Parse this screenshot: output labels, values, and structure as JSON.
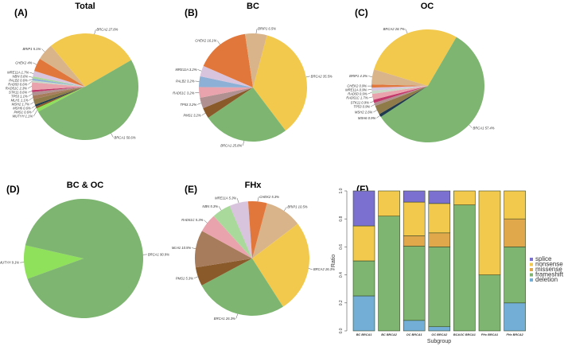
{
  "colors": {
    "BRCA2": "#f2c94c",
    "BRCA1": "#7db571",
    "BRIP1": "#d9b48a",
    "CHEK2": "#e2773c",
    "MRE11A": "#d8c4dc",
    "NBN": "#a9d99b",
    "PALB2": "#8db0d6",
    "RAD50": "#c9d9c8",
    "RAD51C": "#e9a3ac",
    "STK11": "#c2386b",
    "TP53": "#b09090",
    "MLH1": "#a77c5c",
    "MSH2": "#8f7a4a",
    "MSH6": "#1f3a4f",
    "PMS1": "#8a5a2a",
    "MUTYH": "#8fe05a",
    "splice": "#7b6fcf",
    "nonsense": "#f2c94c",
    "missense": "#e0a84a",
    "frameshift": "#7db571",
    "deletion": "#72aed6"
  },
  "chart_data": [
    {
      "panel": "(A)",
      "title": "Total",
      "type": "pie",
      "slices": [
        [
          "BRCA2",
          27.8
        ],
        [
          "BRCA1",
          50.6
        ],
        [
          "MUTYH",
          1.1
        ],
        [
          "PMS1",
          0.6
        ],
        [
          "MSH6",
          0.6
        ],
        [
          "MSH2",
          1.7
        ],
        [
          "MLH1",
          1.1
        ],
        [
          "TP53",
          1.1
        ],
        [
          "STK11",
          0.6
        ],
        [
          "RAD51C",
          2.3
        ],
        [
          "RAD50",
          0.6
        ],
        [
          "PALB2",
          0.6
        ],
        [
          "NBN",
          0.6
        ],
        [
          "MRE11A",
          1.7
        ],
        [
          "CHEK2",
          4
        ],
        [
          "BRIP1",
          5.1
        ]
      ],
      "labels": [
        "BRCA2 27.8%",
        "BRCA1 50.6%",
        "MUTYH 1.1%",
        "PMS1 0.6%",
        "MSH6 0.6%",
        "MSH2 1.7%",
        "MLH1 1.1%",
        "TP53 1.1%",
        "STK11 0.6%",
        "RAD51C 2.3%",
        "RAD50 0.6%",
        "PALB2 0.6%",
        "NBN 0.6%",
        "MRE11A 1.7%",
        "CHEK2 4%",
        "BRIP1 5.1%"
      ]
    },
    {
      "panel": "(B)",
      "title": "BC",
      "type": "pie",
      "slices": [
        [
          "BRCA2",
          35.5
        ],
        [
          "BRCA1",
          25.8
        ],
        [
          "PMS1",
          3.2
        ],
        [
          "TP53",
          3.2
        ],
        [
          "RAD51C",
          3.2
        ],
        [
          "PALB2",
          3.2
        ],
        [
          "MRE11A",
          3.2
        ],
        [
          "CHEK2",
          16.1
        ],
        [
          "BRIP1",
          6.5
        ]
      ],
      "labels": [
        "BRCA2 35.5%",
        "BRCA1 25.8%",
        "PMS1 3.2%",
        "TP53 3.2%",
        "RAD51C 3.2%",
        "PALB2 3.2%",
        "MRE11A 3.2%",
        "CHEK2 16.1%",
        "BRIP1 6.5%"
      ]
    },
    {
      "panel": "(C)",
      "title": "OC",
      "type": "pie",
      "slices": [
        [
          "BRCA2",
          28.7
        ],
        [
          "BRCA1",
          57.4
        ],
        [
          "MSH6",
          0.9
        ],
        [
          "MSH2",
          2.6
        ],
        [
          "TP53",
          0.9
        ],
        [
          "STK11",
          0.9
        ],
        [
          "RAD51C",
          1.7
        ],
        [
          "RAD50",
          0.9
        ],
        [
          "MRE11A",
          0.9
        ],
        [
          "CHEK2",
          0.9
        ],
        [
          "BRIP1",
          4.3
        ]
      ],
      "labels": [
        "BRCA2 28.7%",
        "BRCA1 57.4%",
        "MSH6 0.9%",
        "MSH2 2.6%",
        "TP53 0.9%",
        "STK11 0.9%",
        "RAD51C 1.7%",
        "RAD50 0.9%",
        "MRE11A 0.9%",
        "CHEK2 0.9%",
        "BRIP1 4.3%"
      ]
    },
    {
      "panel": "(D)",
      "title": "BC & OC",
      "type": "pie",
      "slices": [
        [
          "MUTYH",
          9.1
        ],
        [
          "BRCA1",
          90.9
        ]
      ],
      "labels": [
        "MUTYH 9.1%",
        "BRCA1 90.9%"
      ]
    },
    {
      "panel": "(E)",
      "title": "FHx",
      "type": "pie",
      "slices": [
        [
          "BRIP1",
          10.5
        ],
        [
          "BRCA2",
          26.3
        ],
        [
          "BRCA1",
          26.3
        ],
        [
          "PMS1",
          5.3
        ],
        [
          "MLH1",
          10.5
        ],
        [
          "RAD51C",
          5.3
        ],
        [
          "NBN",
          5.3
        ],
        [
          "MRE11A",
          5.3
        ],
        [
          "CHEK2",
          5.3
        ]
      ],
      "labels": [
        "BRIP1 10.5%",
        "BRCA2 26.3%",
        "BRCA1 26.3%",
        "PMS1 5.3%",
        "MLH1 10.5%",
        "RAD51C 5.3%",
        "NBN 5.3%",
        "MRE11A 5.3%",
        "CHEK2 5.3%"
      ]
    },
    {
      "panel": "(F)",
      "type": "bar",
      "stacked": true,
      "xlabel": "Subgroup",
      "ylabel": "Ratio",
      "ylim": [
        0,
        1
      ],
      "yticks": [
        "0.0",
        "0.2",
        "0.4",
        "0.6",
        "0.8",
        "1.0"
      ],
      "categories": [
        "BC BRCA1",
        "BC BRCA2",
        "OC BRCA1",
        "OC BRCA2",
        "BC&OC BRCA1",
        "FHx BRCA1",
        "FHx BRCA2"
      ],
      "legend": [
        "splice",
        "nonsense",
        "missense",
        "frameshift",
        "deletion"
      ],
      "legend_position": "right",
      "series": [
        {
          "name": "deletion",
          "values": [
            0.25,
            0,
            0.075,
            0.03,
            0,
            0,
            0.2
          ]
        },
        {
          "name": "frameshift",
          "values": [
            0.25,
            0.82,
            0.53,
            0.57,
            0.9,
            0.4,
            0.4
          ]
        },
        {
          "name": "missense",
          "values": [
            0,
            0,
            0.075,
            0.1,
            0,
            0,
            0.2
          ]
        },
        {
          "name": "nonsense",
          "values": [
            0.25,
            0.18,
            0.24,
            0.21,
            0.1,
            0.6,
            0.2
          ]
        },
        {
          "name": "splice",
          "values": [
            0.25,
            0,
            0.08,
            0.09,
            0,
            0,
            0
          ]
        }
      ]
    }
  ]
}
